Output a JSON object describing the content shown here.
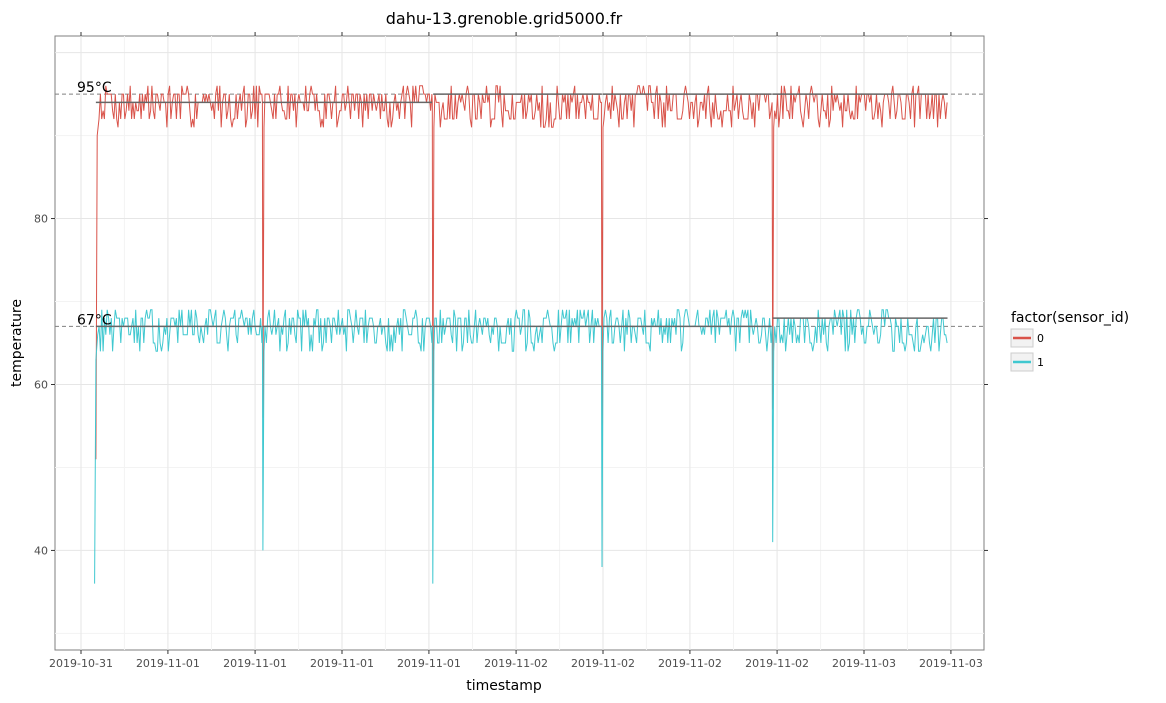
{
  "chart_data": {
    "type": "line",
    "title": "dahu-13.grenoble.grid5000.fr",
    "xlabel": "timestamp",
    "ylabel": "temperature",
    "xlim": [
      -0.9,
      33.1
    ],
    "ylim": [
      28,
      102
    ],
    "grid": true,
    "x_tick_labels": [
      "2019-10-31",
      "2019-11-01",
      "2019-11-01",
      "2019-11-01",
      "2019-11-01",
      "2019-11-02",
      "2019-11-02",
      "2019-11-02",
      "2019-11-02",
      "2019-11-03",
      "2019-11-03"
    ],
    "x_tick_positions": [
      0,
      3.33,
      6.67,
      10,
      13.33,
      16.67,
      20,
      23.33,
      26.67,
      30,
      33.33
    ],
    "y_ticks": [
      40,
      60,
      80
    ],
    "legend": {
      "title": "factor(sensor_id)",
      "placement": "right",
      "entries": [
        {
          "label": "0",
          "color": "#d9534a"
        },
        {
          "label": "1",
          "color": "#40c8d0"
        }
      ]
    },
    "reference_lines": [
      {
        "y": 95,
        "label": "95°C",
        "style": "dashed",
        "color": "#808080"
      },
      {
        "y": 67,
        "label": "67°C",
        "style": "dashed",
        "color": "#808080"
      }
    ],
    "series": [
      {
        "name": "0",
        "color": "#d9534a",
        "base": 94,
        "seed": 7,
        "x_start": 0.57,
        "x_end": 33.2,
        "dips": [
          {
            "x": 0.57,
            "min": 51
          },
          {
            "x": 6.97,
            "min": 56
          },
          {
            "x": 13.48,
            "min": 52
          },
          {
            "x": 19.96,
            "min": 55
          },
          {
            "x": 26.5,
            "min": 57
          }
        ],
        "segment_means": [
          {
            "x0": 0.57,
            "x1": 6.9,
            "y": 94
          },
          {
            "x0": 6.95,
            "x1": 13.45,
            "y": 94
          },
          {
            "x0": 13.5,
            "x1": 19.95,
            "y": 95
          },
          {
            "x0": 20.0,
            "x1": 26.45,
            "y": 95
          },
          {
            "x0": 26.5,
            "x1": 33.2,
            "y": 95
          }
        ]
      },
      {
        "name": "1",
        "color": "#40c8d0",
        "base": 67,
        "seed": 13,
        "x_start": 0.52,
        "x_end": 33.2,
        "dips": [
          {
            "x": 0.52,
            "min": 36
          },
          {
            "x": 6.97,
            "min": 40
          },
          {
            "x": 13.48,
            "min": 36
          },
          {
            "x": 19.96,
            "min": 38
          },
          {
            "x": 26.5,
            "min": 41
          }
        ],
        "segment_means": [
          {
            "x0": 0.57,
            "x1": 6.9,
            "y": 67
          },
          {
            "x0": 6.95,
            "x1": 13.45,
            "y": 67
          },
          {
            "x0": 13.5,
            "x1": 19.95,
            "y": 67
          },
          {
            "x0": 20.0,
            "x1": 26.45,
            "y": 67
          },
          {
            "x0": 26.5,
            "x1": 33.2,
            "y": 68
          }
        ]
      }
    ]
  }
}
